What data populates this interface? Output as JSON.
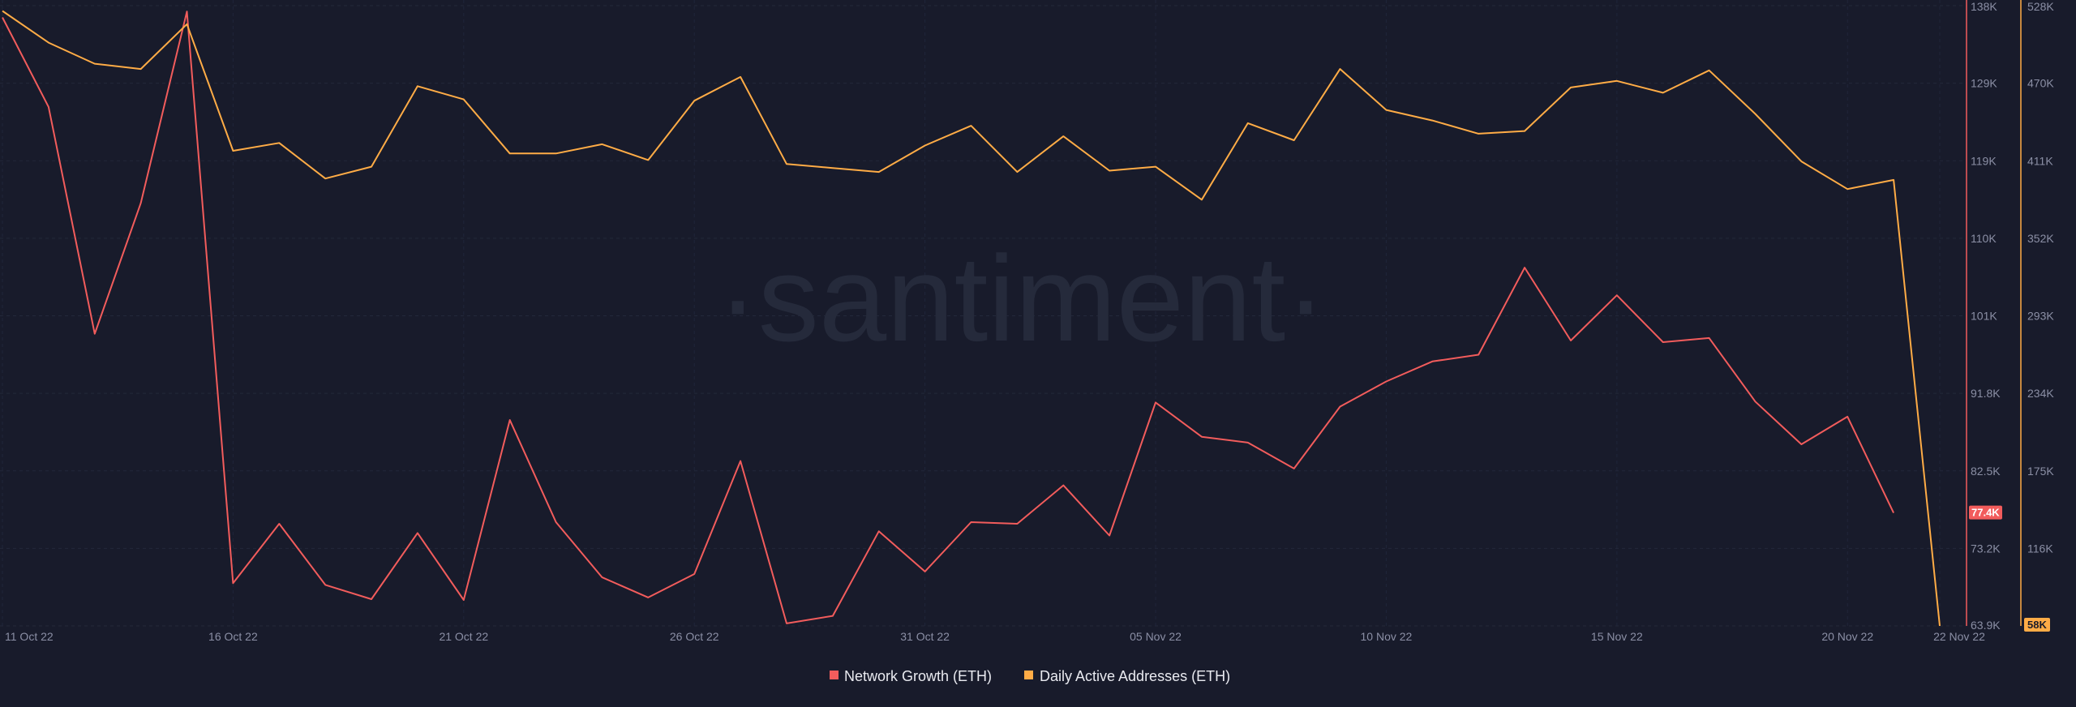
{
  "watermark": "·santiment·",
  "chart_data": {
    "type": "line",
    "x": [
      "11 Oct 22",
      "12 Oct 22",
      "13 Oct 22",
      "14 Oct 22",
      "15 Oct 22",
      "16 Oct 22",
      "17 Oct 22",
      "18 Oct 22",
      "19 Oct 22",
      "20 Oct 22",
      "21 Oct 22",
      "22 Oct 22",
      "23 Oct 22",
      "24 Oct 22",
      "25 Oct 22",
      "26 Oct 22",
      "27 Oct 22",
      "28 Oct 22",
      "29 Oct 22",
      "30 Oct 22",
      "31 Oct 22",
      "01 Nov 22",
      "02 Nov 22",
      "03 Nov 22",
      "04 Nov 22",
      "05 Nov 22",
      "06 Nov 22",
      "07 Nov 22",
      "08 Nov 22",
      "09 Nov 22",
      "10 Nov 22",
      "11 Nov 22",
      "12 Nov 22",
      "13 Nov 22",
      "14 Nov 22",
      "15 Nov 22",
      "16 Nov 22",
      "17 Nov 22",
      "18 Nov 22",
      "19 Nov 22",
      "20 Nov 22",
      "21 Nov 22",
      "22 Nov 22"
    ],
    "x_tick_labels": [
      "11 Oct 22",
      "16 Oct 22",
      "21 Oct 22",
      "26 Oct 22",
      "31 Oct 22",
      "05 Nov 22",
      "10 Nov 22",
      "15 Nov 22",
      "20 Nov 22",
      "22 Nov 22"
    ],
    "series": [
      {
        "name": "Network Growth (ETH)",
        "color": "#f25c5c",
        "axis": "left",
        "values": [
          136600,
          125900,
          98800,
          114400,
          137300,
          69000,
          76100,
          68800,
          67100,
          75000,
          67000,
          88500,
          76300,
          69700,
          67300,
          70100,
          83600,
          64200,
          65100,
          75200,
          70400,
          76300,
          76100,
          80700,
          74700,
          90600,
          86500,
          85800,
          82700,
          90100,
          93100,
          95500,
          96300,
          106700,
          98000,
          103400,
          97800,
          98300,
          90700,
          85600,
          88900,
          77400,
          null
        ]
      },
      {
        "name": "Daily Active Addresses (ETH)",
        "color": "#ffac46",
        "axis": "right",
        "values": [
          524000,
          500000,
          484000,
          480000,
          514000,
          418000,
          424000,
          397000,
          406000,
          467000,
          457000,
          416000,
          416000,
          423000,
          411000,
          456000,
          474000,
          408000,
          405000,
          402000,
          422000,
          437000,
          402000,
          429000,
          403000,
          406000,
          381000,
          439000,
          426000,
          480000,
          449000,
          441000,
          431000,
          433000,
          466000,
          471000,
          462000,
          479000,
          446000,
          410000,
          389000,
          396000,
          58000
        ]
      }
    ],
    "y_left": {
      "ticks": [
        "138K",
        "129K",
        "119K",
        "110K",
        "101K",
        "91.8K",
        "82.5K",
        "73.2K",
        "63.9K"
      ],
      "range": [
        63900,
        138000
      ],
      "current": "77.4K"
    },
    "y_right": {
      "ticks": [
        "528K",
        "470K",
        "411K",
        "352K",
        "293K",
        "234K",
        "175K",
        "116K",
        "58K"
      ],
      "range": [
        58000,
        528000
      ],
      "current": "58K"
    },
    "grid": true,
    "legend_position": "bottom-center"
  }
}
